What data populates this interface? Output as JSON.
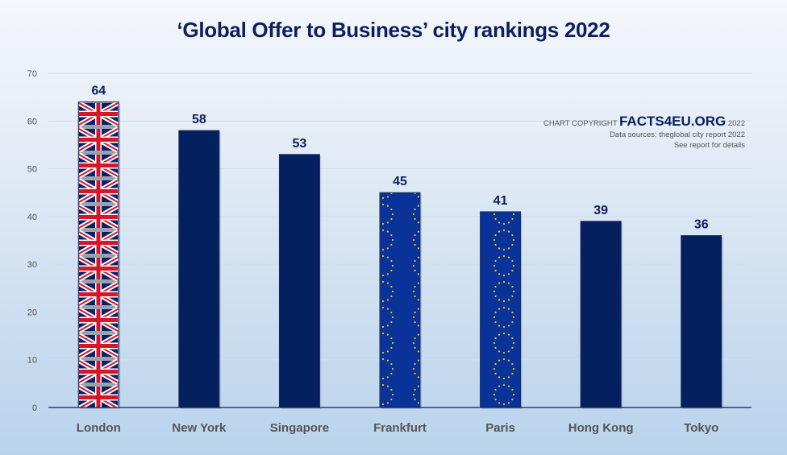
{
  "header": {
    "title": "‘Global Offer to Business’ city rankings 2022"
  },
  "credits": {
    "prefix": "CHART COPYRIGHT",
    "brand": "FACTS4EU.ORG",
    "year": "2022",
    "source": "Data sources: theglobal city report 2022",
    "note": "See report for details"
  },
  "colors": {
    "bar": "#04205e",
    "eu_blue": "#0a3399",
    "eu_star": "#f0c419",
    "uk_red": "#d4162b",
    "uk_blue": "#0c1f6b",
    "axis_text": "#555555",
    "label": "#0b1f5c"
  },
  "chart_data": {
    "type": "bar",
    "title": "‘Global Offer to Business’ city rankings 2022",
    "categories": [
      "London",
      "New York",
      "Singapore",
      "Frankfurt",
      "Paris",
      "Hong Kong",
      "Tokyo"
    ],
    "values": [
      64,
      58,
      53,
      45,
      41,
      39,
      36
    ],
    "bar_fills": [
      "uk-flag",
      "solid",
      "solid",
      "eu-flag",
      "eu-flag",
      "solid",
      "solid"
    ],
    "xlabel": "",
    "ylabel": "",
    "ylim": [
      0,
      70
    ],
    "yticks": [
      0,
      10,
      20,
      30,
      40,
      50,
      60,
      70
    ],
    "grid": true,
    "data_labels": true,
    "legend": null
  }
}
